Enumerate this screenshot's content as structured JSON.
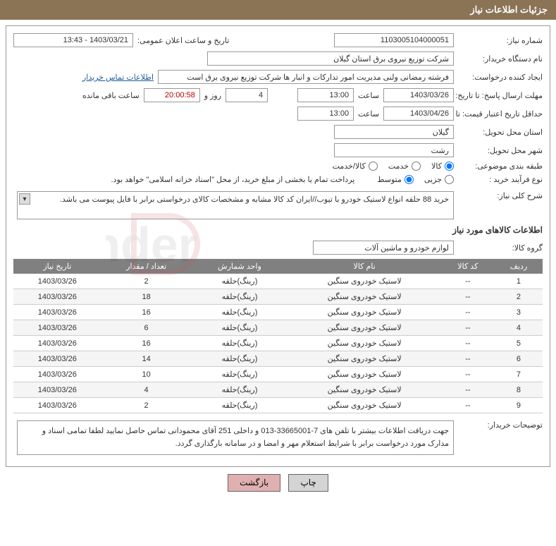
{
  "header": "جزئیات اطلاعات نیاز",
  "labels": {
    "need_no": "شماره نیاز:",
    "announce": "تاریخ و ساعت اعلان عمومی:",
    "buyer": "نام دستگاه خریدار:",
    "creator": "ایجاد کننده درخواست:",
    "deadline": "مهلت ارسال پاسخ: تا تاریخ:",
    "time": "ساعت",
    "days_lbl": "روز و",
    "remaining": "ساعت باقی مانده",
    "validity": "حداقل تاریخ اعتبار قیمت: تا تاریخ:",
    "province": "استان محل تحویل:",
    "city": "شهر محل تحویل:",
    "category": "طبقه بندی موضوعی:",
    "process": "نوع فرآیند خرید :",
    "payment_note": "پرداخت تمام یا بخشی از مبلغ خرید، از محل \"اسناد خزانه اسلامی\" خواهد بود.",
    "summary": "شرح کلی نیاز:",
    "goods_info": "اطلاعات کالاهای مورد نیاز",
    "goods_group": "گروه کالا:",
    "buyer_desc": "توضیحات خریدار:",
    "contact": "اطلاعات تماس خریدار"
  },
  "fields": {
    "need_no": "1103005104000051",
    "announce": "1403/03/21 - 13:43",
    "buyer": "شرکت توزیع نیروی برق استان گیلان",
    "creator": "فرشته رمضانی ولنی مدیریت امور تدارکات و انبار ها شرکت توزیع نیروی برق است",
    "deadline_date": "1403/03/26",
    "deadline_time": "13:00",
    "days_remain": "4",
    "countdown": "20:00:58",
    "validity_date": "1403/04/26",
    "validity_time": "13:00",
    "province": "گیلان",
    "city": "رشت",
    "summary": "خرید 88 حلقه انواع لاستیک خودرو با تیوب//ایران کد کالا مشابه و مشخصات کالای درخواستی برابر با فایل پیوست می باشد.",
    "goods_group": "لوازم خودرو و ماشین آلات",
    "buyer_desc": "جهت دریافت اطلاعات بیشتر با تلفن های 7-33665001-013 و داخلی 251 آقای محمودانی تماس حاصل نمایید لطفا تمامی اسناد و مدارک مورد درخواست برابر با شرایط استعلام مهر و امضا و در سامانه بارگذاری گردد."
  },
  "radios": {
    "category": {
      "opts": [
        "کالا",
        "خدمت",
        "کالا/خدمت"
      ],
      "selected": 0
    },
    "process": {
      "opts": [
        "جزیی",
        "متوسط"
      ],
      "selected": 1
    }
  },
  "table": {
    "headers": [
      "ردیف",
      "کد کالا",
      "نام کالا",
      "واحد شمارش",
      "تعداد / مقدار",
      "تاریخ نیاز"
    ],
    "rows": [
      [
        "1",
        "--",
        "لاستیک خودروی سنگین",
        "(رینگ)حلقه",
        "2",
        "1403/03/26"
      ],
      [
        "2",
        "--",
        "لاستیک خودروی سنگین",
        "(رینگ)حلقه",
        "18",
        "1403/03/26"
      ],
      [
        "3",
        "--",
        "لاستیک خودروی سنگین",
        "(رینگ)حلقه",
        "16",
        "1403/03/26"
      ],
      [
        "4",
        "--",
        "لاستیک خودروی سنگین",
        "(رینگ)حلقه",
        "6",
        "1403/03/26"
      ],
      [
        "5",
        "--",
        "لاستیک خودروی سنگین",
        "(رینگ)حلقه",
        "16",
        "1403/03/26"
      ],
      [
        "6",
        "--",
        "لاستیک خودروی سنگین",
        "(رینگ)حلقه",
        "14",
        "1403/03/26"
      ],
      [
        "7",
        "--",
        "لاستیک خودروی سنگین",
        "(رینگ)حلقه",
        "10",
        "1403/03/26"
      ],
      [
        "8",
        "--",
        "لاستیک خودروی سنگین",
        "(رینگ)حلقه",
        "4",
        "1403/03/26"
      ],
      [
        "9",
        "--",
        "لاستیک خودروی سنگین",
        "(رینگ)حلقه",
        "2",
        "1403/03/26"
      ]
    ]
  },
  "buttons": {
    "print": "چاپ",
    "back": "بازگشت"
  },
  "colors": {
    "header_bg": "#8b7355",
    "th_bg": "#808080",
    "btn_print": "#d4d4d4",
    "btn_back": "#e0b0b0"
  }
}
